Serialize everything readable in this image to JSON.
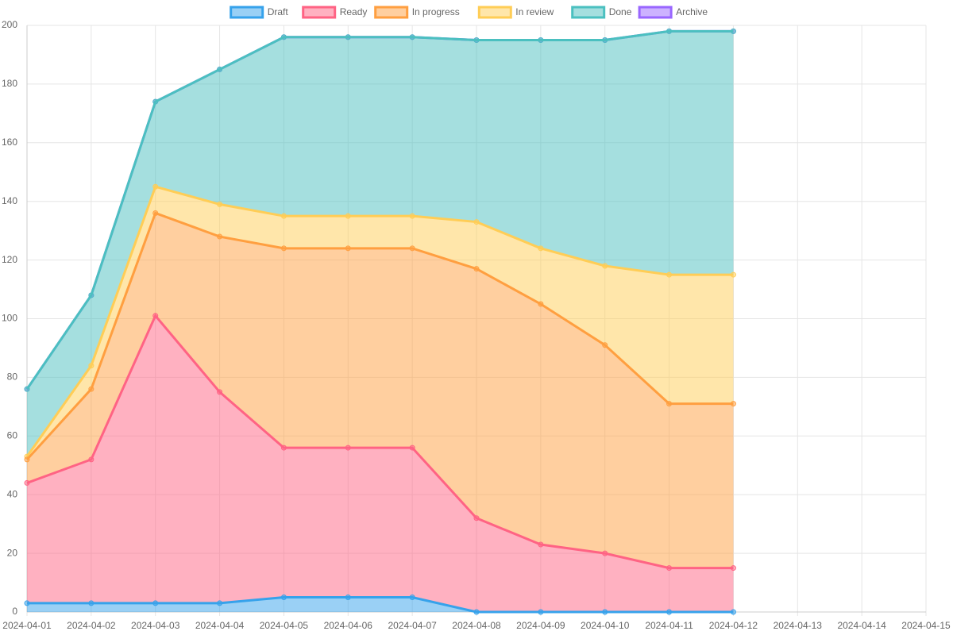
{
  "chart_data": {
    "type": "stacked_area",
    "categories": [
      "2024-04-01",
      "2024-04-02",
      "2024-04-03",
      "2024-04-04",
      "2024-04-05",
      "2024-04-06",
      "2024-04-07",
      "2024-04-08",
      "2024-04-09",
      "2024-04-10",
      "2024-04-11",
      "2024-04-12",
      "2024-04-13",
      "2024-04-14",
      "2024-04-15"
    ],
    "series": [
      {
        "name": "Draft",
        "color": "#36a2eb",
        "values": [
          3,
          3,
          3,
          3,
          5,
          5,
          5,
          0,
          0,
          0,
          0,
          0,
          null,
          null,
          null
        ]
      },
      {
        "name": "Ready",
        "color": "#ff6384",
        "values": [
          41,
          49,
          98,
          72,
          51,
          51,
          51,
          32,
          23,
          20,
          15,
          15,
          null,
          null,
          null
        ]
      },
      {
        "name": "In progress",
        "color": "#ff9f40",
        "values": [
          8,
          24,
          35,
          53,
          68,
          68,
          68,
          85,
          82,
          71,
          56,
          56,
          null,
          null,
          null
        ]
      },
      {
        "name": "In review",
        "color": "#ffcd56",
        "values": [
          1,
          8,
          9,
          11,
          11,
          11,
          11,
          16,
          19,
          27,
          44,
          44,
          null,
          null,
          null
        ]
      },
      {
        "name": "Done",
        "color": "#4bc0c0",
        "values": [
          23,
          24,
          29,
          46,
          61,
          61,
          61,
          62,
          71,
          77,
          83,
          83,
          null,
          null,
          null
        ]
      },
      {
        "name": "Archive",
        "color": "#9966ff",
        "values": [
          0,
          0,
          0,
          0,
          0,
          0,
          0,
          0,
          0,
          0,
          0,
          0,
          null,
          null,
          null
        ]
      }
    ],
    "ylim": [
      0,
      200
    ],
    "yticks": [
      0,
      20,
      40,
      60,
      80,
      100,
      120,
      140,
      160,
      180,
      200
    ],
    "grid": true,
    "legend": "top"
  }
}
